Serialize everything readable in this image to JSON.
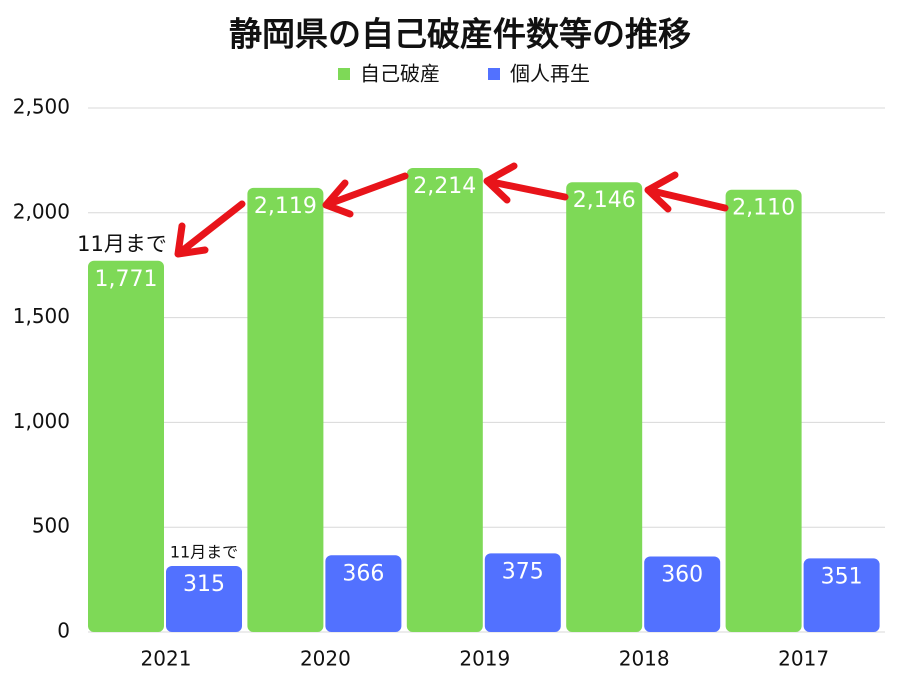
{
  "chart_data": {
    "type": "bar",
    "title": "静岡県の自己破産件数等の推移",
    "categories": [
      "2021",
      "2020",
      "2019",
      "2018",
      "2017"
    ],
    "series": [
      {
        "name": "自己破産",
        "color": "#7ed957",
        "values": [
          1771,
          2119,
          2214,
          2146,
          2110
        ],
        "value_labels": [
          "1,771",
          "2,119",
          "2,214",
          "2,146",
          "2,110"
        ]
      },
      {
        "name": "個人再生",
        "color": "#5271ff",
        "values": [
          315,
          366,
          375,
          360,
          351
        ]
      }
    ],
    "annotations": [
      "11月まで",
      "11月まで"
    ],
    "ylim": [
      0,
      2500
    ],
    "yticks": [
      0,
      500,
      {
        "value": 1000,
        "label": "1,000"
      },
      {
        "value": 1500,
        "label": "1,500"
      },
      {
        "value": 2000,
        "label": "2,000"
      },
      {
        "value": 2500,
        "label": "2,500"
      }
    ],
    "grid": true
  }
}
